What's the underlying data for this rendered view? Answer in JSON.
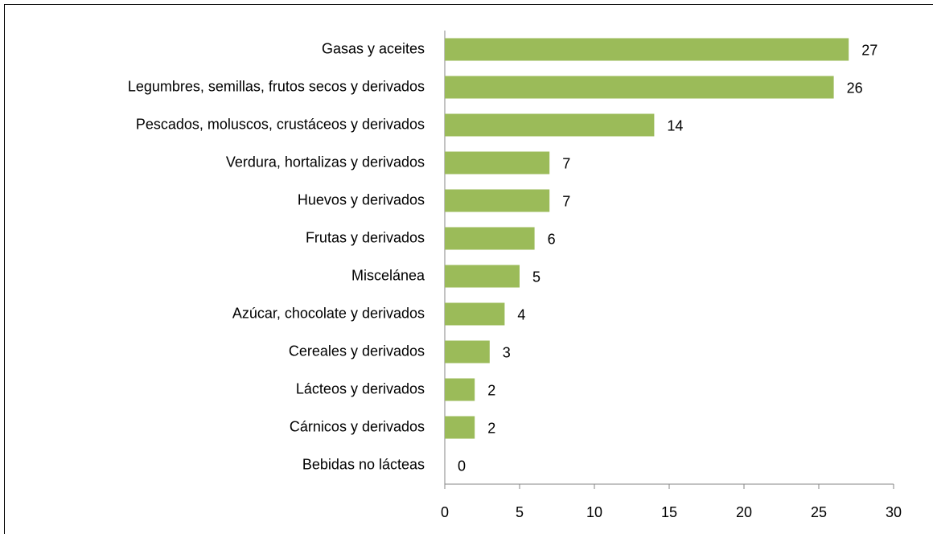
{
  "chart_data": {
    "type": "bar",
    "orientation": "horizontal",
    "categories": [
      "Gasas y aceites",
      "Legumbres, semillas, frutos secos y derivados",
      "Pescados, moluscos, crustáceos y derivados",
      "Verdura, hortalizas y derivados",
      "Huevos y derivados",
      "Frutas y derivados",
      "Miscelánea",
      "Azúcar, chocolate y derivados",
      "Cereales y derivados",
      "Lácteos y derivados",
      "Cárnicos y derivados",
      "Bebidas no lácteas"
    ],
    "values": [
      27,
      26,
      14,
      7,
      7,
      6,
      5,
      4,
      3,
      2,
      2,
      0
    ],
    "color": "#9bbb59",
    "xlim": [
      0,
      30
    ],
    "xticks": [
      0,
      5,
      10,
      15,
      20,
      25,
      30
    ],
    "grid": false
  }
}
